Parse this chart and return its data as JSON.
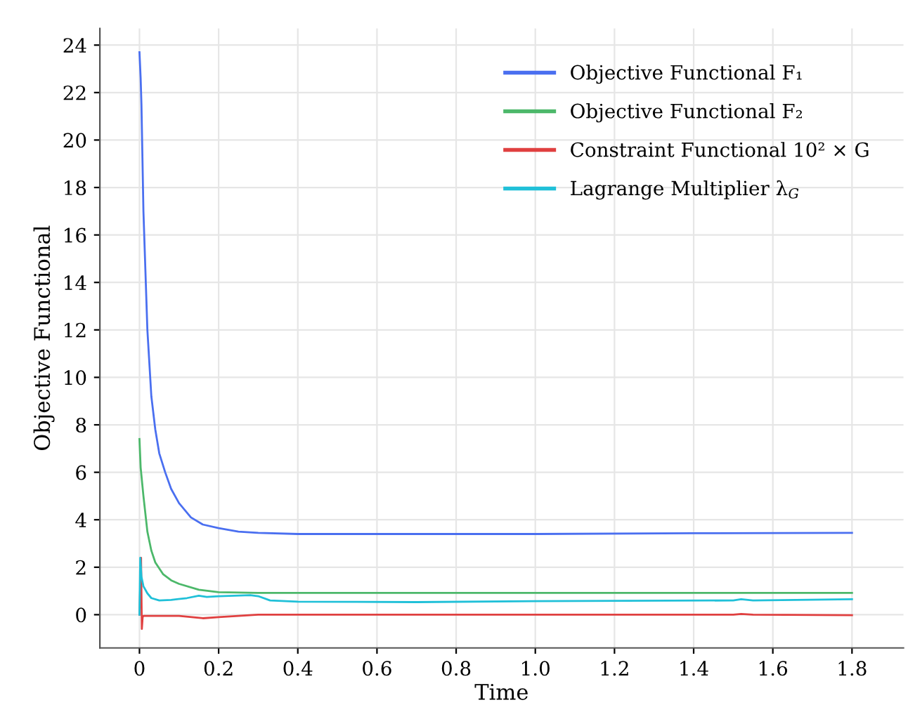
{
  "chart_data": {
    "type": "line",
    "xlabel": "Time",
    "ylabel": "Objective Functional",
    "xlim": [
      -0.1,
      1.93
    ],
    "ylim": [
      -1.4,
      24.7
    ],
    "xticks": [
      0,
      0.2,
      0.4,
      0.6,
      0.8,
      {
        "value": 1,
        "label": "1.0"
      },
      1.2,
      1.4,
      1.6,
      1.8
    ],
    "yticks": [
      0,
      2,
      4,
      6,
      8,
      10,
      12,
      14,
      16,
      18,
      20,
      22,
      24
    ],
    "grid": true,
    "legend": "top right",
    "marker": "none",
    "line_style": "solid",
    "series": [
      {
        "name": "Objective Functional F₁",
        "color": "#4a6ff0",
        "x": [
          0,
          0.003,
          0.005,
          0.01,
          0.02,
          0.03,
          0.04,
          0.05,
          0.065,
          0.08,
          0.1,
          0.13,
          0.16,
          0.2,
          0.25,
          0.3,
          0.4,
          0.6,
          1.0,
          1.4,
          1.8
        ],
        "values": [
          23.7,
          22.6,
          21.5,
          17,
          12,
          9.2,
          7.8,
          6.8,
          6.0,
          5.3,
          4.7,
          4.1,
          3.8,
          3.65,
          3.5,
          3.45,
          3.4,
          3.4,
          3.4,
          3.43,
          3.45
        ]
      },
      {
        "name": "Objective Functional F₂",
        "color": "#4cb86a",
        "x": [
          0,
          0.003,
          0.01,
          0.02,
          0.03,
          0.04,
          0.06,
          0.08,
          0.1,
          0.15,
          0.2,
          0.3,
          0.6,
          1.0,
          1.8
        ],
        "values": [
          7.4,
          6.2,
          5.0,
          3.5,
          2.7,
          2.2,
          1.7,
          1.45,
          1.3,
          1.05,
          0.95,
          0.92,
          0.92,
          0.92,
          0.92
        ]
      },
      {
        "name": "Constraint Functional 10² × G",
        "color": "#e04040",
        "x": [
          0,
          0.004,
          0.006,
          0.008,
          0.01,
          0.05,
          0.1,
          0.16,
          0.2,
          0.3,
          0.6,
          1.0,
          1.5,
          1.52,
          1.55,
          1.8
        ],
        "values": [
          0,
          2.4,
          -0.6,
          -0.1,
          -0.05,
          -0.05,
          -0.05,
          -0.15,
          -0.1,
          0,
          0,
          0,
          0,
          0.03,
          0,
          -0.02
        ]
      },
      {
        "name": "Lagrange Multiplier λ$_{G}$",
        "color": "#20c0d8",
        "x": [
          0,
          0.002,
          0.005,
          0.01,
          0.02,
          0.03,
          0.05,
          0.08,
          0.12,
          0.15,
          0.17,
          0.2,
          0.28,
          0.3,
          0.33,
          0.4,
          0.7,
          1.0,
          1.5,
          1.52,
          1.55,
          1.8
        ],
        "values": [
          0,
          2.4,
          1.6,
          1.2,
          0.9,
          0.7,
          0.6,
          0.62,
          0.7,
          0.8,
          0.75,
          0.78,
          0.82,
          0.78,
          0.6,
          0.55,
          0.53,
          0.57,
          0.6,
          0.65,
          0.6,
          0.65
        ]
      }
    ]
  }
}
